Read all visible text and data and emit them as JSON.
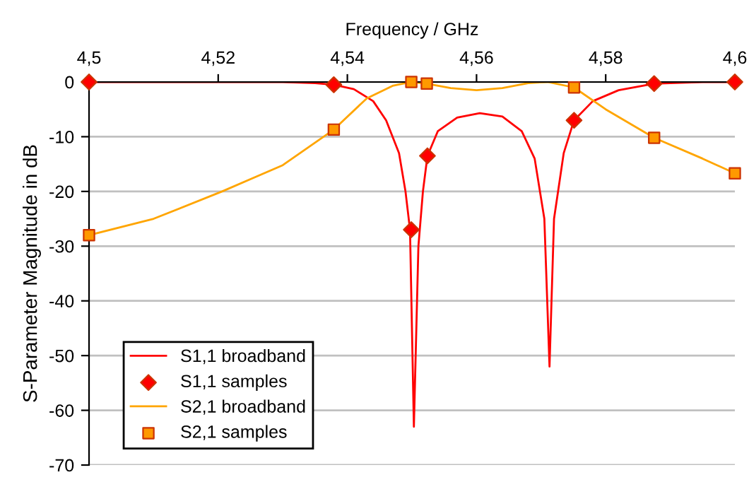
{
  "chart_data": {
    "type": "line",
    "xlabel": "Frequency / GHz",
    "ylabel": "S-Parameter Magnitude in dB",
    "xlim": [
      4.5,
      4.6
    ],
    "xticks": [
      {
        "value": 4.5,
        "label": "4,5"
      },
      {
        "value": 4.52,
        "label": "4,52"
      },
      {
        "value": 4.54,
        "label": "4,54"
      },
      {
        "value": 4.56,
        "label": "4,56"
      },
      {
        "value": 4.58,
        "label": "4,58"
      },
      {
        "value": 4.6,
        "label": "4,6"
      }
    ],
    "ylim": [
      -70,
      0
    ],
    "yticks": [
      -70,
      -60,
      -50,
      -40,
      -30,
      -20,
      -10,
      0
    ],
    "grid": "y",
    "legend": "bottom left",
    "series": [
      {
        "name": "S1,1 broadband",
        "color": "#ff0000",
        "marker": "none",
        "x": [
          4.5,
          4.53,
          4.535,
          4.5379,
          4.541,
          4.544,
          4.546,
          4.548,
          4.549,
          4.5497,
          4.5503,
          4.551,
          4.5517,
          4.5524,
          4.554,
          4.557,
          4.5605,
          4.564,
          4.567,
          4.569,
          4.5705,
          4.5713,
          4.572,
          4.5735,
          4.5751,
          4.578,
          4.582,
          4.5875,
          4.595,
          4.6
        ],
        "values": [
          0,
          0,
          -0.2,
          -0.5,
          -1.3,
          -3.5,
          -7,
          -13,
          -20,
          -27,
          -63,
          -30,
          -20,
          -13.5,
          -9,
          -6.5,
          -5.7,
          -6.3,
          -9,
          -14,
          -25,
          -52,
          -25,
          -13,
          -7,
          -3.5,
          -1.5,
          -0.3,
          0,
          0
        ]
      },
      {
        "name": "S1,1 samples",
        "type": "scatter",
        "color": "#ff0000",
        "marker": "diamond",
        "x": [
          4.5,
          4.5379,
          4.5499,
          4.5524,
          4.5751,
          4.5875,
          4.6
        ],
        "values": [
          0,
          -0.5,
          -27,
          -13.5,
          -7,
          -0.3,
          0
        ]
      },
      {
        "name": "S2,1 broadband",
        "color": "#ffa500",
        "marker": "none",
        "x": [
          4.5,
          4.51,
          4.5206,
          4.53,
          4.5379,
          4.543,
          4.547,
          4.5499,
          4.5523,
          4.556,
          4.56,
          4.564,
          4.568,
          4.571,
          4.5751,
          4.58,
          4.5875,
          4.595,
          4.6
        ],
        "values": [
          -28,
          -25,
          -20,
          -15.2,
          -8.7,
          -3,
          -0.7,
          0,
          -0.3,
          -1.1,
          -1.5,
          -1.1,
          -0.2,
          0,
          -1,
          -5,
          -10.2,
          -14,
          -16.7
        ]
      },
      {
        "name": "S2,1 samples",
        "type": "scatter",
        "color": "#ff9900",
        "marker": "square",
        "x": [
          4.5,
          4.5379,
          4.5499,
          4.5523,
          4.5751,
          4.5875,
          4.6
        ],
        "values": [
          -28,
          -8.7,
          0,
          -0.3,
          -1,
          -10.2,
          -16.7
        ]
      }
    ]
  }
}
